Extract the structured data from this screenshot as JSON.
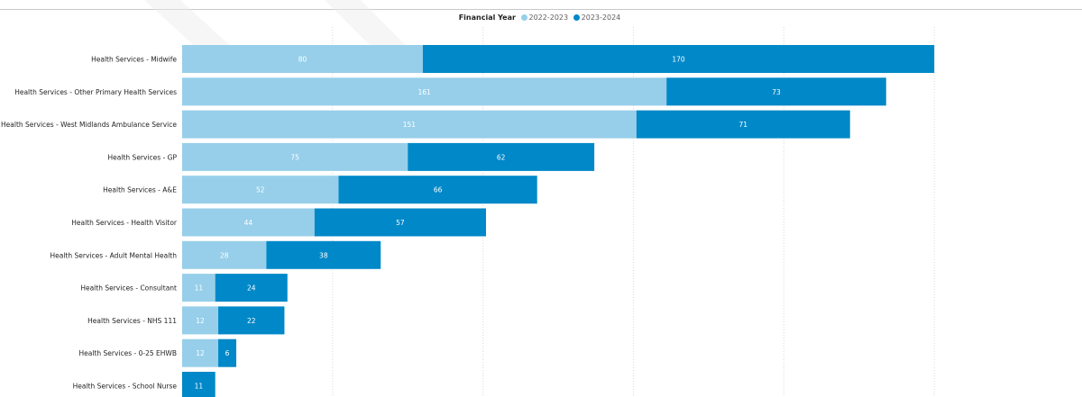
{
  "legend": {
    "title": "Financial Year",
    "items": [
      {
        "label": "2022-2023",
        "color": "#97cfea"
      },
      {
        "label": "2023-2024",
        "color": "#0088c8"
      }
    ]
  },
  "chart_data": {
    "type": "bar",
    "orientation": "horizontal",
    "stacked": true,
    "legend_position": "top-center",
    "grid": true,
    "categories": [
      "Health Services - Midwife",
      "Health Services - Other Primary Health Services",
      "Health Services - West Midlands Ambulance Service",
      "Health Services - GP",
      "Health Services - A&E",
      "Health Services - Health Visitor",
      "Health Services - Adult Mental Health",
      "Health Services - Consultant",
      "Health Services - NHS 111",
      "Health Services - 0-25 EHWB",
      "Health Services - School Nurse"
    ],
    "series": [
      {
        "name": "2022-2023",
        "color": "#97cfea",
        "values": [
          80,
          161,
          151,
          75,
          52,
          44,
          28,
          11,
          12,
          12,
          null
        ]
      },
      {
        "name": "2023-2024",
        "color": "#0088c8",
        "values": [
          170,
          73,
          71,
          62,
          66,
          57,
          38,
          24,
          22,
          6,
          11
        ]
      }
    ],
    "xlim": [
      0,
      300
    ]
  }
}
